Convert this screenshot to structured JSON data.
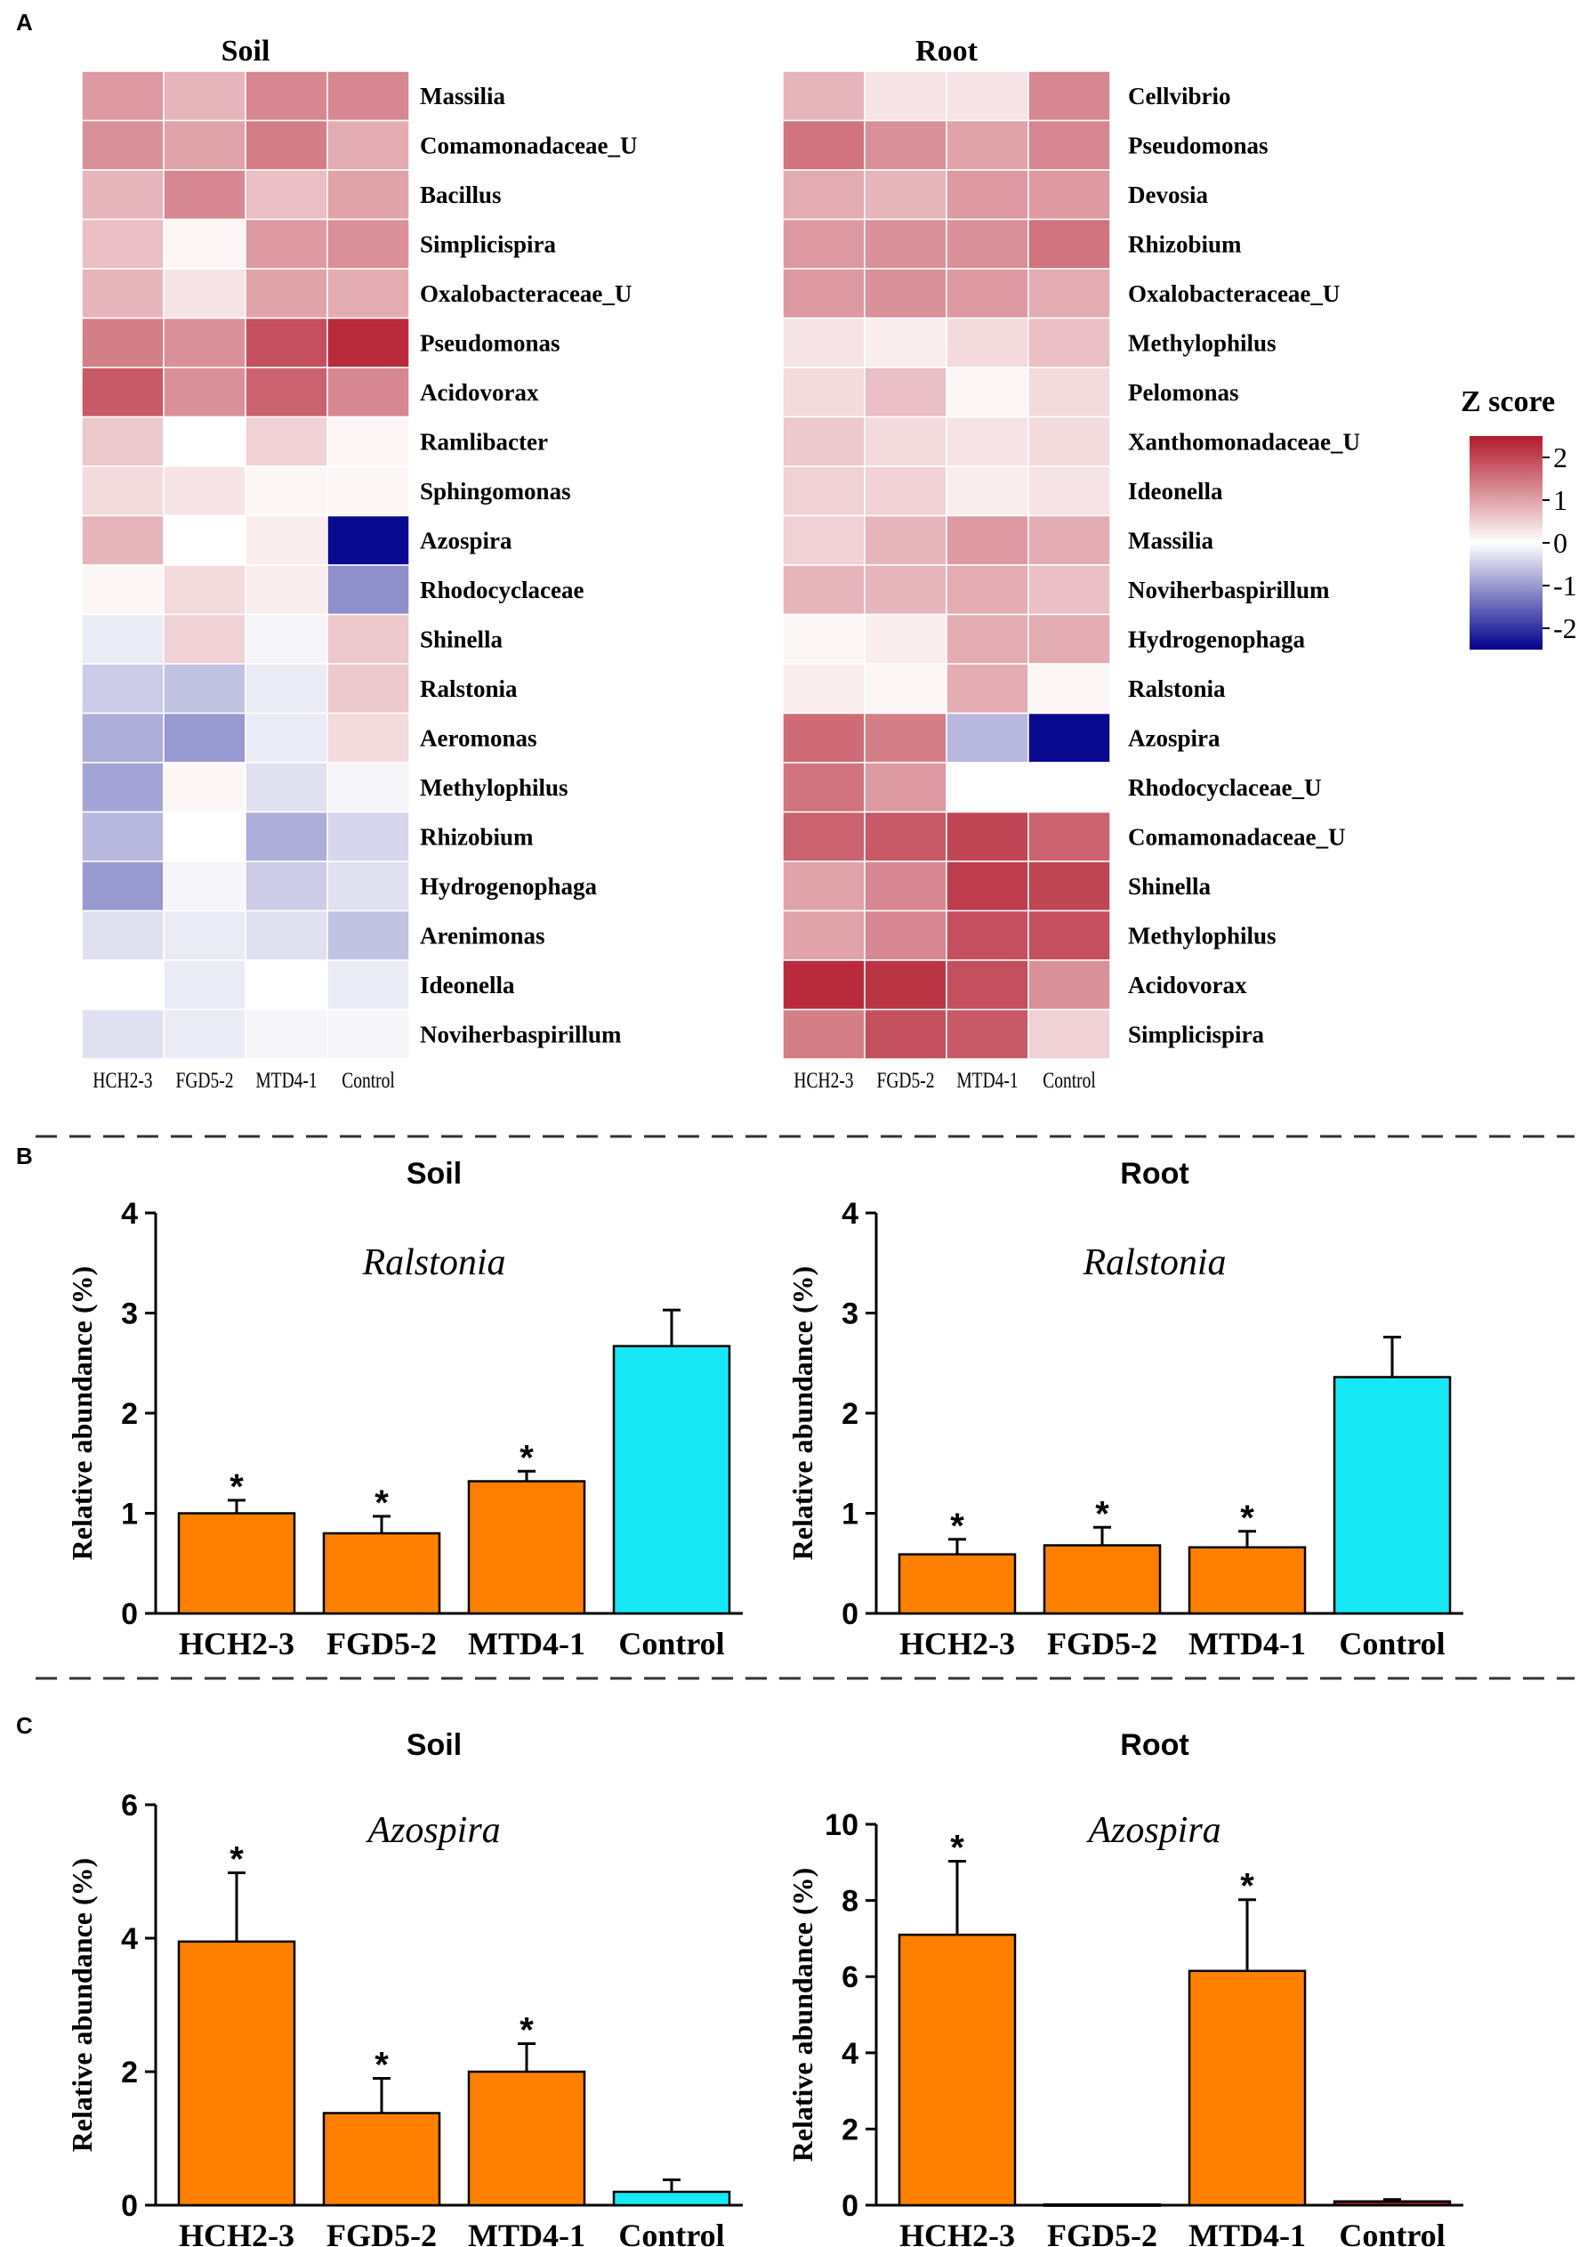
{
  "figure": {
    "panels": {
      "a": "A",
      "b": "B",
      "c": "C"
    }
  },
  "chart_data": [
    {
      "type": "heatmap",
      "id": "heat-soil",
      "title": "Soil",
      "columns": [
        "HCH2-3",
        "FGD5-2",
        "MTD4-1",
        "Control"
      ],
      "rows": [
        "Massilia",
        "Comamonadaceae_U",
        "Bacillus",
        "Simplicispira",
        "Oxalobacteraceae_U",
        "Pseudomonas",
        "Acidovorax",
        "Ramlibacter",
        "Sphingomonas",
        "Azospira",
        "Rhodocyclaceae",
        "Shinella",
        "Ralstonia",
        "Aeromonas",
        "Methylophilus",
        "Rhizobium",
        "Hydrogenophaga",
        "Arenimonas",
        "Ideonella",
        "Noviherbaspirillum"
      ],
      "values": [
        [
          1.1,
          0.8,
          1.3,
          1.3
        ],
        [
          1.2,
          1.0,
          1.4,
          0.9
        ],
        [
          0.8,
          1.3,
          0.7,
          1.0
        ],
        [
          0.7,
          0.1,
          1.1,
          1.2
        ],
        [
          0.8,
          0.3,
          1.0,
          0.9
        ],
        [
          1.4,
          1.2,
          1.9,
          2.3
        ],
        [
          1.8,
          1.2,
          1.7,
          1.3
        ],
        [
          0.6,
          0.0,
          0.5,
          0.1
        ],
        [
          0.4,
          0.3,
          0.1,
          0.1
        ],
        [
          0.8,
          0.0,
          0.2,
          -2.4
        ],
        [
          0.1,
          0.4,
          0.2,
          -1.1
        ],
        [
          -0.2,
          0.5,
          -0.1,
          0.6
        ],
        [
          -0.5,
          -0.6,
          -0.2,
          0.6
        ],
        [
          -0.8,
          -1.0,
          -0.2,
          0.4
        ],
        [
          -0.9,
          0.1,
          -0.3,
          -0.1
        ],
        [
          -0.7,
          0.0,
          -0.8,
          -0.4
        ],
        [
          -1.0,
          -0.1,
          -0.5,
          -0.3
        ],
        [
          -0.3,
          -0.2,
          -0.3,
          -0.6
        ],
        [
          0.0,
          -0.2,
          0.0,
          -0.2
        ],
        [
          -0.3,
          -0.2,
          -0.1,
          -0.1
        ]
      ]
    },
    {
      "type": "heatmap",
      "id": "heat-root",
      "title": "Root",
      "columns": [
        "HCH2-3",
        "FGD5-2",
        "MTD4-1",
        "Control"
      ],
      "rows": [
        "Cellvibrio",
        "Pseudomonas",
        "Devosia",
        "Rhizobium",
        "Oxalobacteraceae_U",
        "Methylophilus",
        "Pelomonas",
        "Xanthomonadaceae_U",
        "Ideonella",
        "Massilia",
        "Noviherbaspirillum",
        "Hydrogenophaga",
        "Ralstonia",
        "Azospira",
        "Rhodocyclaceae_U",
        "Comamonadaceae_U",
        "Shinella",
        "Methylophilus",
        "Acidovorax",
        "Simplicispira"
      ],
      "values": [
        [
          0.8,
          0.3,
          0.3,
          1.3
        ],
        [
          1.5,
          1.2,
          1.0,
          1.3
        ],
        [
          0.9,
          0.8,
          1.1,
          1.1
        ],
        [
          1.1,
          1.2,
          1.2,
          1.5
        ],
        [
          1.1,
          1.2,
          1.1,
          0.9
        ],
        [
          0.3,
          0.2,
          0.4,
          0.7
        ],
        [
          0.4,
          0.7,
          0.1,
          0.4
        ],
        [
          0.6,
          0.4,
          0.3,
          0.4
        ],
        [
          0.5,
          0.5,
          0.2,
          0.3
        ],
        [
          0.5,
          0.8,
          1.1,
          0.9
        ],
        [
          0.8,
          0.8,
          0.9,
          0.7
        ],
        [
          0.1,
          0.2,
          0.9,
          0.9
        ],
        [
          0.2,
          0.1,
          0.9,
          0.1
        ],
        [
          1.6,
          1.4,
          -0.7,
          -2.4
        ],
        [
          1.5,
          1.1,
          0.0,
          0.0
        ],
        [
          1.7,
          1.8,
          2.0,
          1.7
        ],
        [
          1.0,
          1.3,
          2.1,
          2.0
        ],
        [
          1.0,
          1.3,
          1.9,
          1.9
        ],
        [
          2.3,
          2.2,
          1.9,
          1.2
        ],
        [
          1.4,
          1.9,
          1.8,
          0.5
        ]
      ]
    },
    {
      "type": "bar",
      "id": "bar-b-soil",
      "title": "Soil",
      "subtitle": "Ralstonia",
      "ylabel": "Relative abundance (%)",
      "categories": [
        "HCH2-3",
        "FGD5-2",
        "MTD4-1",
        "Control"
      ],
      "values": [
        1.0,
        0.8,
        1.32,
        2.67
      ],
      "errors": [
        0.13,
        0.17,
        0.1,
        0.36
      ],
      "significance": [
        "*",
        "*",
        "*",
        ""
      ],
      "colors": [
        "#ff8000",
        "#ff8000",
        "#ff8000",
        "#17e8f5"
      ],
      "ylim": [
        0,
        4
      ],
      "yticks": [
        "0",
        "1",
        "2",
        "3",
        "4"
      ]
    },
    {
      "type": "bar",
      "id": "bar-b-root",
      "title": "Root",
      "subtitle": "Ralstonia",
      "ylabel": "Relative abundance (%)",
      "categories": [
        "HCH2-3",
        "FGD5-2",
        "MTD4-1",
        "Control"
      ],
      "values": [
        0.59,
        0.68,
        0.66,
        2.36
      ],
      "errors": [
        0.15,
        0.18,
        0.16,
        0.4
      ],
      "significance": [
        "*",
        "*",
        "*",
        ""
      ],
      "colors": [
        "#ff8000",
        "#ff8000",
        "#ff8000",
        "#17e8f5"
      ],
      "ylim": [
        0,
        4
      ],
      "yticks": [
        "0",
        "1",
        "2",
        "3",
        "4"
      ]
    },
    {
      "type": "bar",
      "id": "bar-c-soil",
      "title": "Soil",
      "subtitle": "Azospira",
      "ylabel": "Relative abundance (%)",
      "categories": [
        "HCH2-3",
        "FGD5-2",
        "MTD4-1",
        "Control"
      ],
      "values": [
        3.95,
        1.38,
        2.0,
        0.2
      ],
      "errors": [
        1.03,
        0.52,
        0.42,
        0.18
      ],
      "significance": [
        "*",
        "*",
        "*",
        ""
      ],
      "colors": [
        "#ff8000",
        "#ff8000",
        "#ff8000",
        "#17e8f5"
      ],
      "ylim": [
        0,
        6
      ],
      "yticks": [
        "0",
        "2",
        "4",
        "6"
      ]
    },
    {
      "type": "bar",
      "id": "bar-c-root",
      "title": "Root",
      "subtitle": "Azospira",
      "ylabel": "Relative abundance (%)",
      "categories": [
        "HCH2-3",
        "FGD5-2",
        "MTD4-1",
        "Control"
      ],
      "values": [
        7.1,
        0.02,
        6.15,
        0.1
      ],
      "errors": [
        1.93,
        0.0,
        1.87,
        0.05
      ],
      "significance": [
        "*",
        "",
        "*",
        ""
      ],
      "colors": [
        "#ff8000",
        "#ff8000",
        "#ff8000",
        "#8b1c1c"
      ],
      "ylim": [
        0,
        10
      ],
      "yticks": [
        "0",
        "2",
        "4",
        "6",
        "8",
        "10"
      ]
    }
  ],
  "legend": {
    "title": "Z score",
    "ticks": [
      "2",
      "1",
      "0",
      "-1",
      "-2"
    ],
    "colors": {
      "high": "#b2182b",
      "mid": "#ffffff",
      "low": "#00008b"
    }
  }
}
